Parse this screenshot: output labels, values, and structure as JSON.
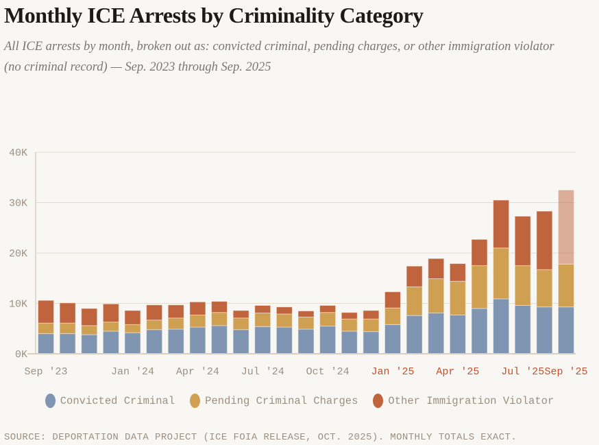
{
  "header": {
    "title": "Monthly ICE Arrests by Criminality Category",
    "subtitle": "All ICE arrests by month, broken out as: convicted criminal, pending charges, or other immigration violator (no criminal record) — Sep. 2023 through Sep. 2025"
  },
  "chart_data": {
    "type": "bar",
    "stacked": true,
    "title": "Monthly ICE Arrests by Criminality Category",
    "xlabel": "",
    "ylabel": "",
    "ylim": [
      0,
      40000
    ],
    "yticks": [
      0,
      10000,
      20000,
      30000,
      40000
    ],
    "ytick_labels": [
      "0K",
      "10K",
      "20K",
      "30K",
      "40K"
    ],
    "grid": true,
    "categories": [
      "Sep 2023",
      "Oct 2023",
      "Nov 2023",
      "Dec 2023",
      "Jan 2024",
      "Feb 2024",
      "Mar 2024",
      "Apr 2024",
      "May 2024",
      "Jun 2024",
      "Jul 2024",
      "Aug 2024",
      "Sep 2024",
      "Oct 2024",
      "Nov 2024",
      "Dec 2024",
      "Jan 2025",
      "Feb 2025",
      "Mar 2025",
      "Apr 2025",
      "May 2025",
      "Jun 2025",
      "Jul 2025",
      "Aug 2025",
      "Sep 2025"
    ],
    "xtick_labels": [
      {
        "index": 0,
        "label": "Sep '23",
        "highlight": false
      },
      {
        "index": 4,
        "label": "Jan '24",
        "highlight": false
      },
      {
        "index": 7,
        "label": "Apr '24",
        "highlight": false
      },
      {
        "index": 10,
        "label": "Jul '24",
        "highlight": false
      },
      {
        "index": 13,
        "label": "Oct '24",
        "highlight": false
      },
      {
        "index": 16,
        "label": "Jan '25",
        "highlight": true
      },
      {
        "index": 19,
        "label": "Apr '25",
        "highlight": true
      },
      {
        "index": 22,
        "label": "Jul '25",
        "highlight": true
      },
      {
        "index": 24,
        "label": "Sep '25",
        "highlight": true
      }
    ],
    "series": [
      {
        "name": "Convicted Criminal",
        "color": "#7f95b1",
        "values": [
          4000,
          4000,
          3800,
          4500,
          4200,
          4800,
          4900,
          5300,
          5600,
          4800,
          5400,
          5300,
          4900,
          5500,
          4500,
          4400,
          5800,
          7600,
          8100,
          7700,
          9000,
          10900,
          9600,
          9300,
          9300
        ]
      },
      {
        "name": "Pending Criminal Charges",
        "color": "#d0a052",
        "values": [
          2100,
          2100,
          1800,
          1800,
          1600,
          1900,
          2200,
          2400,
          2600,
          2300,
          2700,
          2600,
          2400,
          2700,
          2400,
          2500,
          3300,
          5700,
          6800,
          6700,
          8500,
          10100,
          7900,
          7400,
          8500
        ]
      },
      {
        "name": "Other Immigration Violator",
        "color": "#c0643e",
        "values": [
          4500,
          4000,
          3400,
          3600,
          2800,
          3000,
          2600,
          2600,
          2200,
          1500,
          1500,
          1400,
          1200,
          1400,
          1300,
          1700,
          3200,
          4100,
          4000,
          3500,
          5200,
          9500,
          9800,
          11600,
          14700
        ]
      }
    ],
    "faded_last_segment": {
      "index": 24,
      "series": "Other Immigration Violator"
    },
    "highlight_color": "#c0512e",
    "legend_position": "bottom-center"
  },
  "footer": {
    "source": "SOURCE: DEPORTATION DATA PROJECT (ICE FOIA RELEASE, OCT. 2025). MONTHLY TOTALS EXACT."
  }
}
